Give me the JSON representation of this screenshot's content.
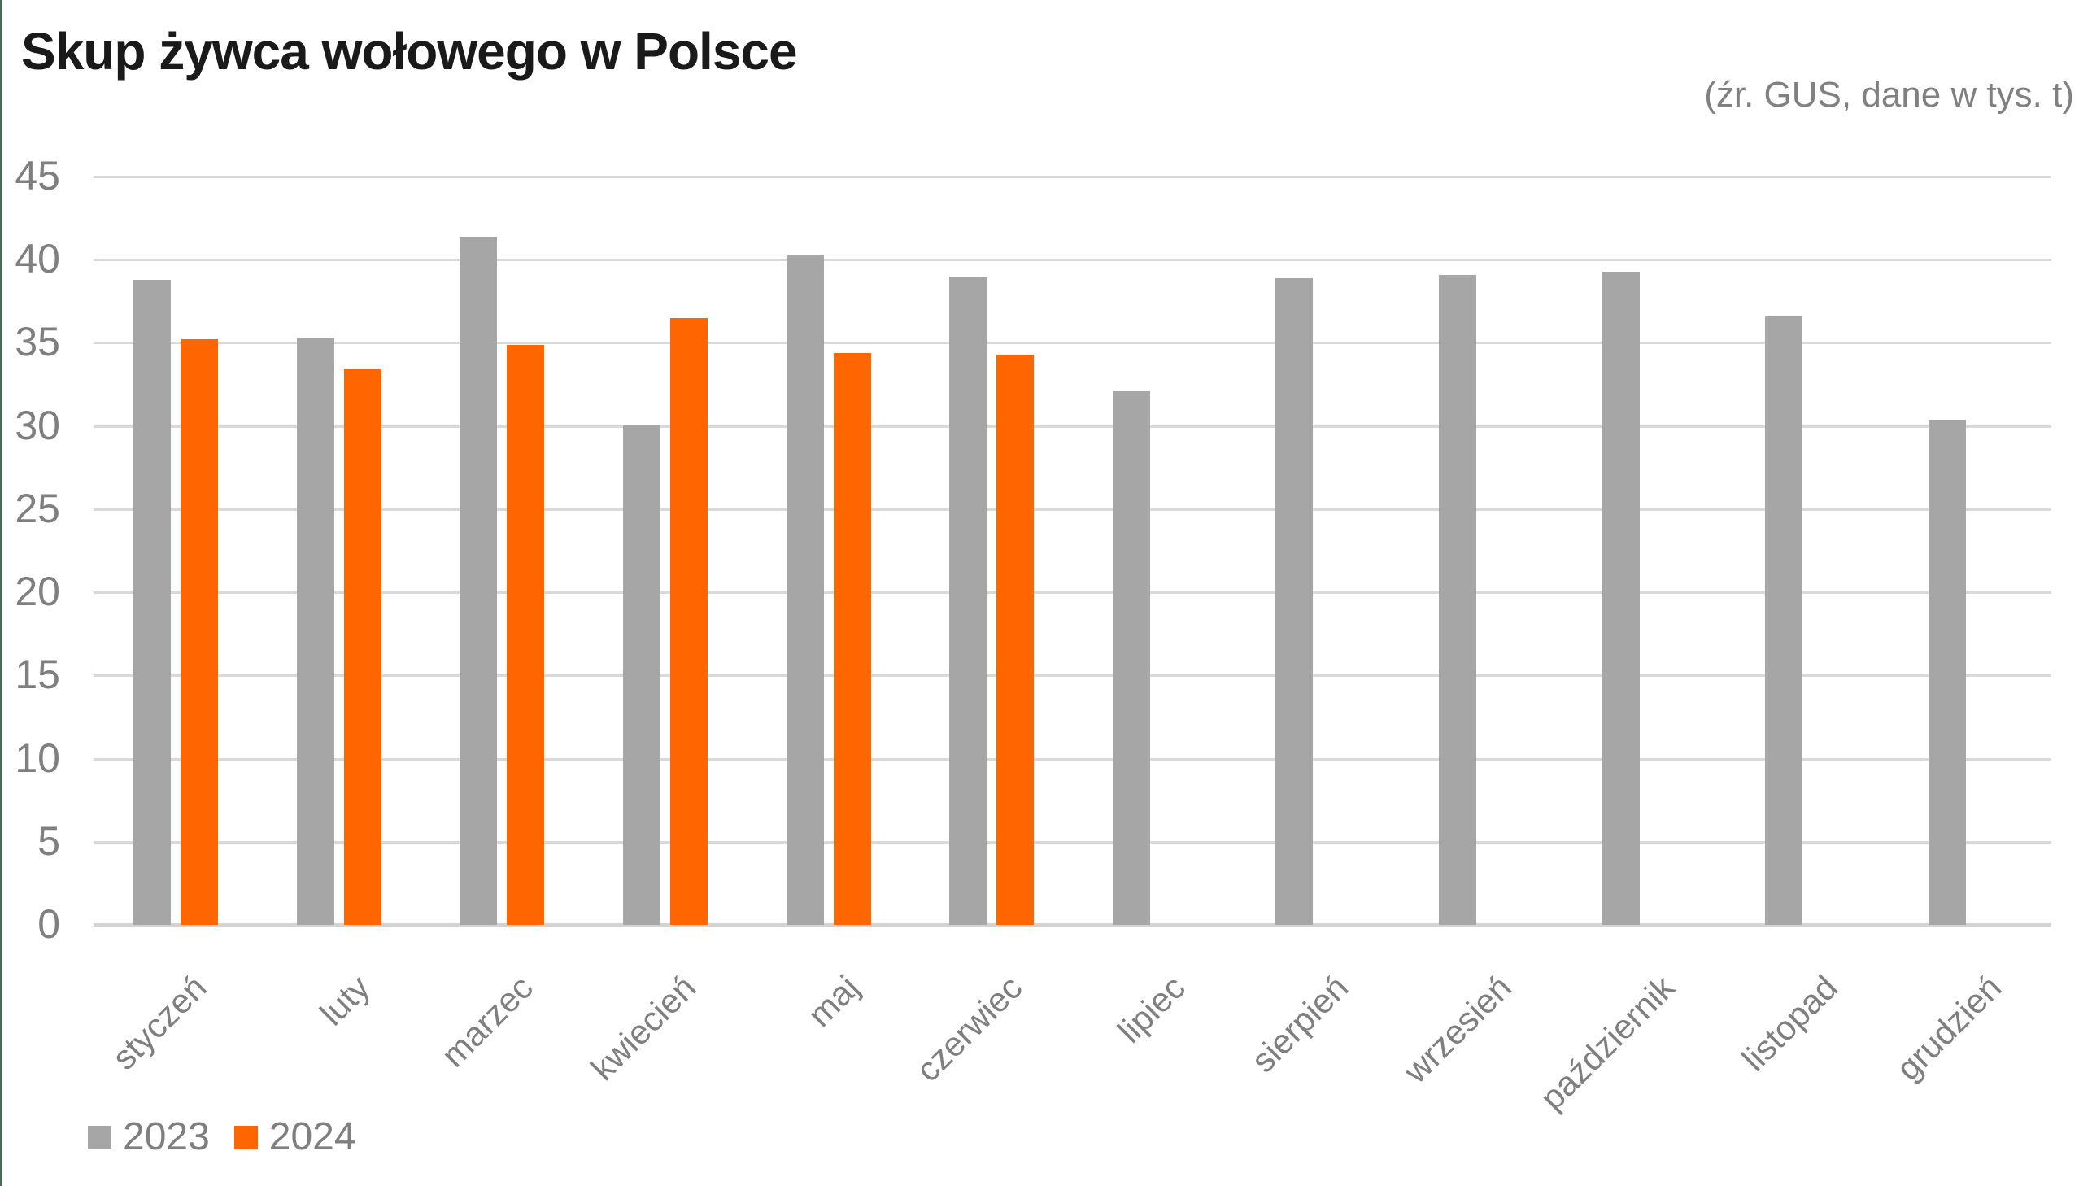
{
  "meta": {
    "title": "Skup żywca wołowego w Polsce",
    "source_note": "(źr. GUS, dane w tys. t)"
  },
  "colors": {
    "background": "#FFFFFF",
    "accent_stripe": "#4A6B52",
    "title_text": "#1A1A1A",
    "source_text": "#808080",
    "axis_text": "#7F7F7F",
    "gridline": "#D9D9D9",
    "axis_line": "#D3D3D3",
    "bar_2023": "#A6A6A6",
    "bar_2024": "#FF6600"
  },
  "chart_data": {
    "type": "bar",
    "title": "Skup żywca wołowego w Polsce",
    "subtitle": "(źr. GUS, dane w tys. t)",
    "unit": "tys. t",
    "categories": [
      "styczeń",
      "luty",
      "marzec",
      "kwiecień",
      "maj",
      "czerwiec",
      "lipiec",
      "sierpień",
      "wrzesień",
      "październik",
      "listopad",
      "grudzień"
    ],
    "series": [
      {
        "name": "2023",
        "color": "#A6A6A6",
        "values": [
          38.8,
          35.3,
          41.4,
          30.1,
          40.3,
          39.0,
          32.1,
          38.9,
          39.1,
          39.3,
          36.6,
          30.4
        ]
      },
      {
        "name": "2024",
        "color": "#FF6600",
        "values": [
          35.2,
          33.4,
          34.9,
          36.5,
          34.4,
          34.3,
          null,
          null,
          null,
          null,
          null,
          null
        ]
      }
    ],
    "xlabel": "",
    "ylabel": "",
    "ylim": [
      0,
      45
    ],
    "yticks": [
      0,
      5,
      10,
      15,
      20,
      25,
      30,
      35,
      40,
      45
    ],
    "grid": "horizontal",
    "legend_position": "bottom-left"
  },
  "legend": {
    "items": [
      {
        "label": "2023",
        "color": "#A6A6A6"
      },
      {
        "label": "2024",
        "color": "#FF6600"
      }
    ]
  }
}
